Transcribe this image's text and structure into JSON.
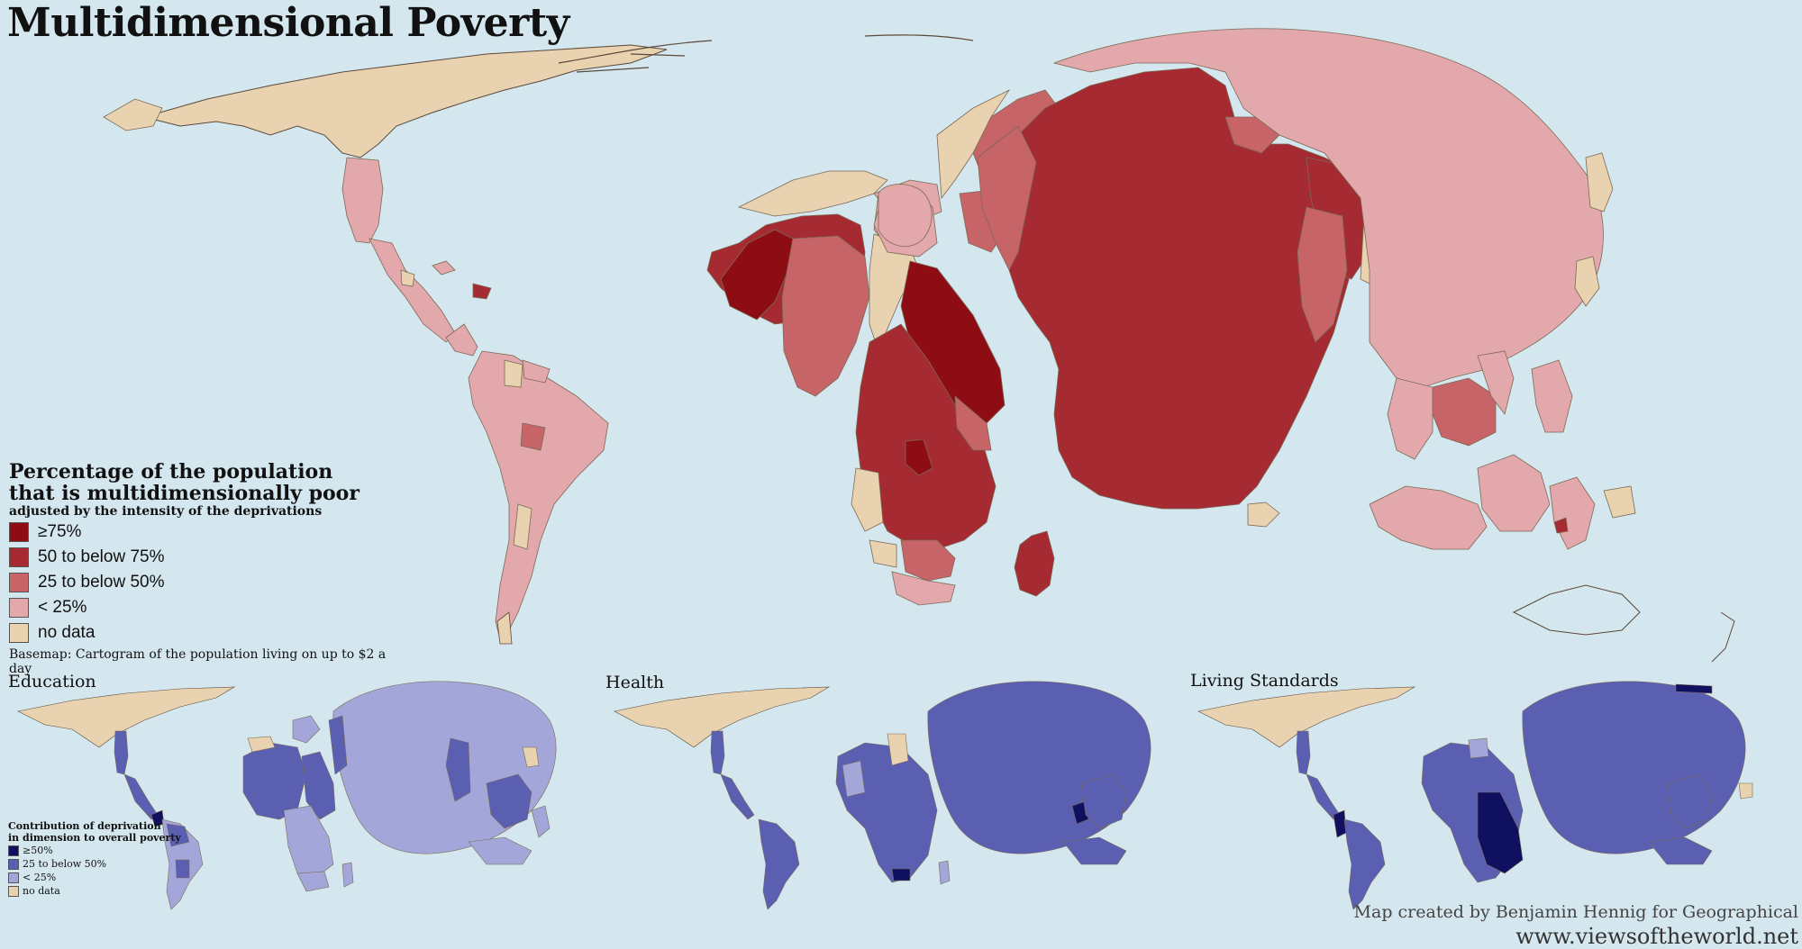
{
  "title": "Multidimensional Poverty",
  "main_legend": {
    "heading_line1": "Percentage of the population",
    "heading_line2": "that is multidimensionally poor",
    "subheading": "adjusted by the intensity of the deprivations",
    "items": [
      {
        "label": "≥75%",
        "color": "#8e0d14"
      },
      {
        "label": "50 to below 75%",
        "color": "#a52a32"
      },
      {
        "label": "25 to below 50%",
        "color": "#c76468"
      },
      {
        "label": "< 25%",
        "color": "#e3a8ab"
      },
      {
        "label": "no data",
        "color": "#e8d2b0"
      }
    ],
    "basemap_note": "Basemap: Cartogram of the population living on up to $2 a day"
  },
  "small_maps": [
    {
      "title": "Education"
    },
    {
      "title": "Health"
    },
    {
      "title": "Living Standards"
    }
  ],
  "small_legend": {
    "heading_line1": "Contribution of deprivation",
    "heading_line2": "in dimension to overall poverty",
    "items": [
      {
        "label": "≥50%",
        "color": "#101060"
      },
      {
        "label": "25 to below 50%",
        "color": "#5b5fb2"
      },
      {
        "label": "< 25%",
        "color": "#a3a6d8"
      },
      {
        "label": "no data",
        "color": "#e8d2b0"
      }
    ]
  },
  "credit": {
    "line1": "Map created by Benjamin Hennig for Geographical",
    "line2": "www.viewsoftheworld.net"
  },
  "colors": {
    "ocean": "#d4e6ee",
    "land_outline": "#8a7a60",
    "sea_ice_land": "#e8d2b0"
  }
}
